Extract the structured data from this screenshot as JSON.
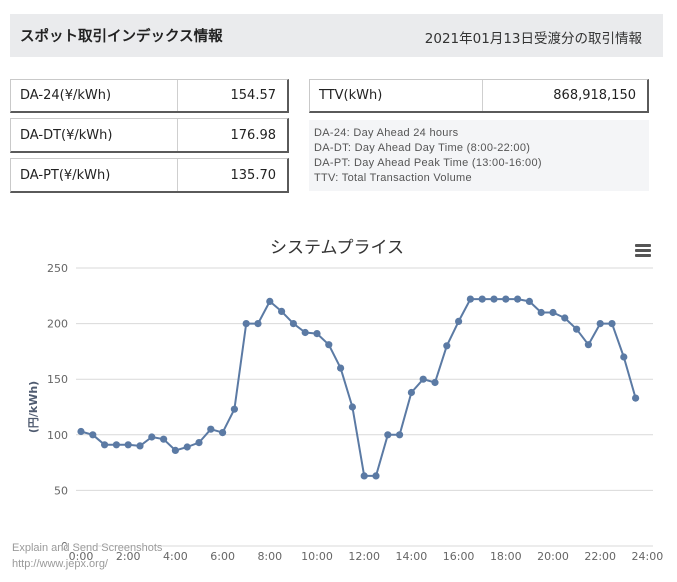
{
  "header": {
    "title": "スポット取引インデックス情報",
    "date_info": "2021年01月13日受渡分の取引情報"
  },
  "indices": [
    {
      "label": "DA-24(¥/kWh)",
      "value": "154.57"
    },
    {
      "label": "DA-DT(¥/kWh)",
      "value": "176.98"
    },
    {
      "label": "DA-PT(¥/kWh)",
      "value": "135.70"
    }
  ],
  "ttv": {
    "label": "TTV(kWh)",
    "value": "868,918,150"
  },
  "notes": [
    "DA-24: Day Ahead 24 hours",
    "DA-DT: Day Ahead Day Time (8:00-22:00)",
    "DA-PT: Day Ahead Peak Time (13:00-16:00)",
    "TTV: Total Transaction Volume"
  ],
  "chart_menu": {
    "icon": "menu-icon"
  },
  "colors": {
    "series": "#5b7aa4",
    "grid": "#d9d9d9",
    "header_bg": "#eaebed"
  },
  "chart_data": {
    "type": "line",
    "title": "システムプライス",
    "xlabel": "",
    "ylabel": "(円/kWh)",
    "x": [
      "0:00",
      "0:30",
      "1:00",
      "1:30",
      "2:00",
      "2:30",
      "3:00",
      "3:30",
      "4:00",
      "4:30",
      "5:00",
      "5:30",
      "6:00",
      "6:30",
      "7:00",
      "7:30",
      "8:00",
      "8:30",
      "9:00",
      "9:30",
      "10:00",
      "10:30",
      "11:00",
      "11:30",
      "12:00",
      "12:30",
      "13:00",
      "13:30",
      "14:00",
      "14:30",
      "15:00",
      "15:30",
      "16:00",
      "16:30",
      "17:00",
      "17:30",
      "18:00",
      "18:30",
      "19:00",
      "19:30",
      "20:00",
      "20:30",
      "21:00",
      "21:30",
      "22:00",
      "22:30",
      "23:00",
      "23:30"
    ],
    "values": [
      103,
      100,
      91,
      91,
      91,
      90,
      98,
      96,
      86,
      89,
      93,
      105,
      102,
      123,
      200,
      200,
      220,
      211,
      200,
      192,
      191,
      181,
      160,
      125,
      63,
      63,
      100,
      100,
      138,
      150,
      147,
      180,
      202,
      222,
      222,
      222,
      222,
      222,
      220,
      210,
      210,
      205,
      195,
      181,
      200,
      200,
      170,
      133
    ],
    "xticks": [
      "0:00",
      "2:00",
      "4:00",
      "6:00",
      "8:00",
      "10:00",
      "12:00",
      "14:00",
      "16:00",
      "18:00",
      "20:00",
      "22:00",
      "24:00"
    ],
    "yticks": [
      0,
      50,
      100,
      150,
      200,
      250
    ],
    "xlim": [
      "0:00",
      "24:00"
    ],
    "ylim": [
      0,
      250
    ],
    "grid": true
  },
  "watermark": {
    "line1": "Explain and Send Screenshots",
    "line2": "http://www.jepx.org/"
  }
}
